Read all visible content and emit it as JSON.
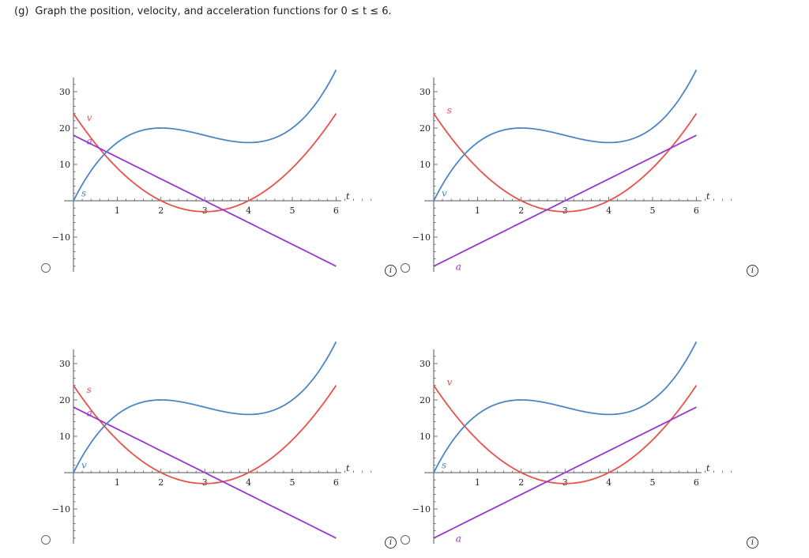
{
  "question": {
    "label": "(g)",
    "text": "Graph the position, velocity, and acceleration functions for 0 ≤ t ≤ 6."
  },
  "info_glyph": "i",
  "colors": {
    "s": "#4a86c5",
    "v": "#e8504a",
    "a": "#9536d6"
  },
  "chart_data": [
    {
      "type": "line",
      "xlabel": "t",
      "xlim": [
        0,
        6
      ],
      "ylim": [
        -15,
        31
      ],
      "x_ticks": [
        1,
        2,
        3,
        4,
        5,
        6
      ],
      "y_ticks": [
        -10,
        10,
        20,
        30
      ],
      "series": [
        {
          "name": "s",
          "color": "#4a86c5",
          "expr": "t^3 - 9t^2 + 24t",
          "x": [
            0,
            1,
            2,
            3,
            4,
            5,
            6
          ],
          "y": [
            0,
            16,
            20,
            18,
            16,
            20,
            36
          ]
        },
        {
          "name": "v",
          "color": "#e8504a",
          "expr": "3t^2 - 18t + 24",
          "x": [
            0,
            1,
            2,
            3,
            4,
            5,
            6
          ],
          "y": [
            24,
            9,
            0,
            -3,
            0,
            9,
            24
          ]
        },
        {
          "name": "a",
          "color": "#9536d6",
          "expr": "18 - 6t",
          "x": [
            0,
            6
          ],
          "y": [
            18,
            -18
          ]
        }
      ],
      "curve_labels": [
        {
          "text": "v",
          "series": "v",
          "x": 0.3,
          "y": 22
        },
        {
          "text": "a",
          "series": "a",
          "x": 0.3,
          "y": 15.5
        },
        {
          "text": "s",
          "series": "s",
          "x": 0.18,
          "y": 1.2
        }
      ]
    },
    {
      "type": "line",
      "xlabel": "t",
      "xlim": [
        0,
        6
      ],
      "ylim": [
        -15,
        31
      ],
      "x_ticks": [
        1,
        2,
        3,
        4,
        5,
        6
      ],
      "y_ticks": [
        -10,
        10,
        20,
        30
      ],
      "series": [
        {
          "name": "s",
          "color": "#4a86c5",
          "expr": "t^3 - 9t^2 + 24t",
          "x": [
            0,
            1,
            2,
            3,
            4,
            5,
            6
          ],
          "y": [
            0,
            16,
            20,
            18,
            16,
            20,
            36
          ]
        },
        {
          "name": "v",
          "color": "#e8504a",
          "expr": "3t^2 - 18t + 24",
          "x": [
            0,
            1,
            2,
            3,
            4,
            5,
            6
          ],
          "y": [
            24,
            9,
            0,
            -3,
            0,
            9,
            24
          ]
        },
        {
          "name": "a",
          "color": "#9536d6",
          "expr": "6t - 18",
          "x": [
            0,
            6
          ],
          "y": [
            -18,
            18
          ]
        }
      ],
      "curve_labels": [
        {
          "text": "s",
          "series": "v",
          "x": 0.3,
          "y": 24
        },
        {
          "text": "v",
          "series": "s",
          "x": 0.18,
          "y": 1.2
        },
        {
          "text": "a",
          "series": "a",
          "x": 0.5,
          "y": -19
        }
      ]
    },
    {
      "type": "line",
      "xlabel": "t",
      "xlim": [
        0,
        6
      ],
      "ylim": [
        -15,
        31
      ],
      "x_ticks": [
        1,
        2,
        3,
        4,
        5,
        6
      ],
      "y_ticks": [
        -10,
        10,
        20,
        30
      ],
      "series": [
        {
          "name": "s",
          "color": "#4a86c5",
          "expr": "t^3 - 9t^2 + 24t",
          "x": [
            0,
            1,
            2,
            3,
            4,
            5,
            6
          ],
          "y": [
            0,
            16,
            20,
            18,
            16,
            20,
            36
          ]
        },
        {
          "name": "v",
          "color": "#e8504a",
          "expr": "3t^2 - 18t + 24",
          "x": [
            0,
            1,
            2,
            3,
            4,
            5,
            6
          ],
          "y": [
            24,
            9,
            0,
            -3,
            0,
            9,
            24
          ]
        },
        {
          "name": "a",
          "color": "#9536d6",
          "expr": "18 - 6t",
          "x": [
            0,
            6
          ],
          "y": [
            18,
            -18
          ]
        }
      ],
      "curve_labels": [
        {
          "text": "s",
          "series": "v",
          "x": 0.3,
          "y": 22
        },
        {
          "text": "a",
          "series": "a",
          "x": 0.3,
          "y": 15.5
        },
        {
          "text": "v",
          "series": "s",
          "x": 0.18,
          "y": 1.2
        }
      ]
    },
    {
      "type": "line",
      "xlabel": "t",
      "xlim": [
        0,
        6
      ],
      "ylim": [
        -15,
        31
      ],
      "x_ticks": [
        1,
        2,
        3,
        4,
        5,
        6
      ],
      "y_ticks": [
        -10,
        10,
        20,
        30
      ],
      "series": [
        {
          "name": "s",
          "color": "#4a86c5",
          "expr": "t^3 - 9t^2 + 24t",
          "x": [
            0,
            1,
            2,
            3,
            4,
            5,
            6
          ],
          "y": [
            0,
            16,
            20,
            18,
            16,
            20,
            36
          ]
        },
        {
          "name": "v",
          "color": "#e8504a",
          "expr": "3t^2 - 18t + 24",
          "x": [
            0,
            1,
            2,
            3,
            4,
            5,
            6
          ],
          "y": [
            24,
            9,
            0,
            -3,
            0,
            9,
            24
          ]
        },
        {
          "name": "a",
          "color": "#9536d6",
          "expr": "6t - 18",
          "x": [
            0,
            6
          ],
          "y": [
            -18,
            18
          ]
        }
      ],
      "curve_labels": [
        {
          "text": "v",
          "series": "v",
          "x": 0.3,
          "y": 24
        },
        {
          "text": "s",
          "series": "s",
          "x": 0.18,
          "y": 1.2
        },
        {
          "text": "a",
          "series": "a",
          "x": 0.5,
          "y": -19
        }
      ]
    }
  ]
}
